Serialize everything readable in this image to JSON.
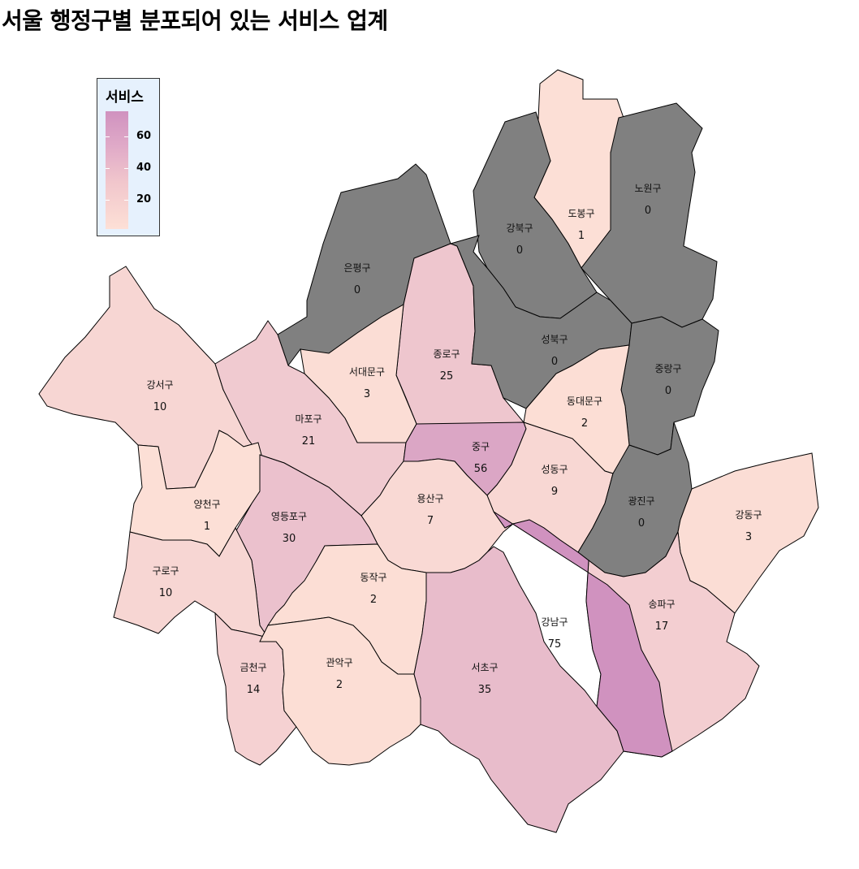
{
  "title": "서울 행정구별 분포되어 있는 서비스 업계",
  "legend": {
    "title": "서비스",
    "ticks": [
      "60",
      "40",
      "20"
    ]
  },
  "colors": {
    "zero": "#808080",
    "low": "#fde0d6",
    "high": "#d092bf"
  },
  "chart_data": {
    "type": "choropleth",
    "metric": "서비스",
    "districts": [
      {
        "name": "도봉구",
        "value": 1
      },
      {
        "name": "노원구",
        "value": 0
      },
      {
        "name": "강북구",
        "value": 0
      },
      {
        "name": "은평구",
        "value": 0
      },
      {
        "name": "종로구",
        "value": 25
      },
      {
        "name": "성북구",
        "value": 0
      },
      {
        "name": "중랑구",
        "value": 0
      },
      {
        "name": "강서구",
        "value": 10
      },
      {
        "name": "서대문구",
        "value": 3
      },
      {
        "name": "동대문구",
        "value": 2
      },
      {
        "name": "마포구",
        "value": 21
      },
      {
        "name": "중구",
        "value": 56
      },
      {
        "name": "성동구",
        "value": 9
      },
      {
        "name": "광진구",
        "value": 0
      },
      {
        "name": "강동구",
        "value": 3
      },
      {
        "name": "양천구",
        "value": 1
      },
      {
        "name": "용산구",
        "value": 7
      },
      {
        "name": "영등포구",
        "value": 30
      },
      {
        "name": "구로구",
        "value": 10
      },
      {
        "name": "동작구",
        "value": 2
      },
      {
        "name": "송파구",
        "value": 17
      },
      {
        "name": "강남구",
        "value": 75
      },
      {
        "name": "금천구",
        "value": 14
      },
      {
        "name": "관악구",
        "value": 2
      },
      {
        "name": "서초구",
        "value": 35
      }
    ]
  }
}
